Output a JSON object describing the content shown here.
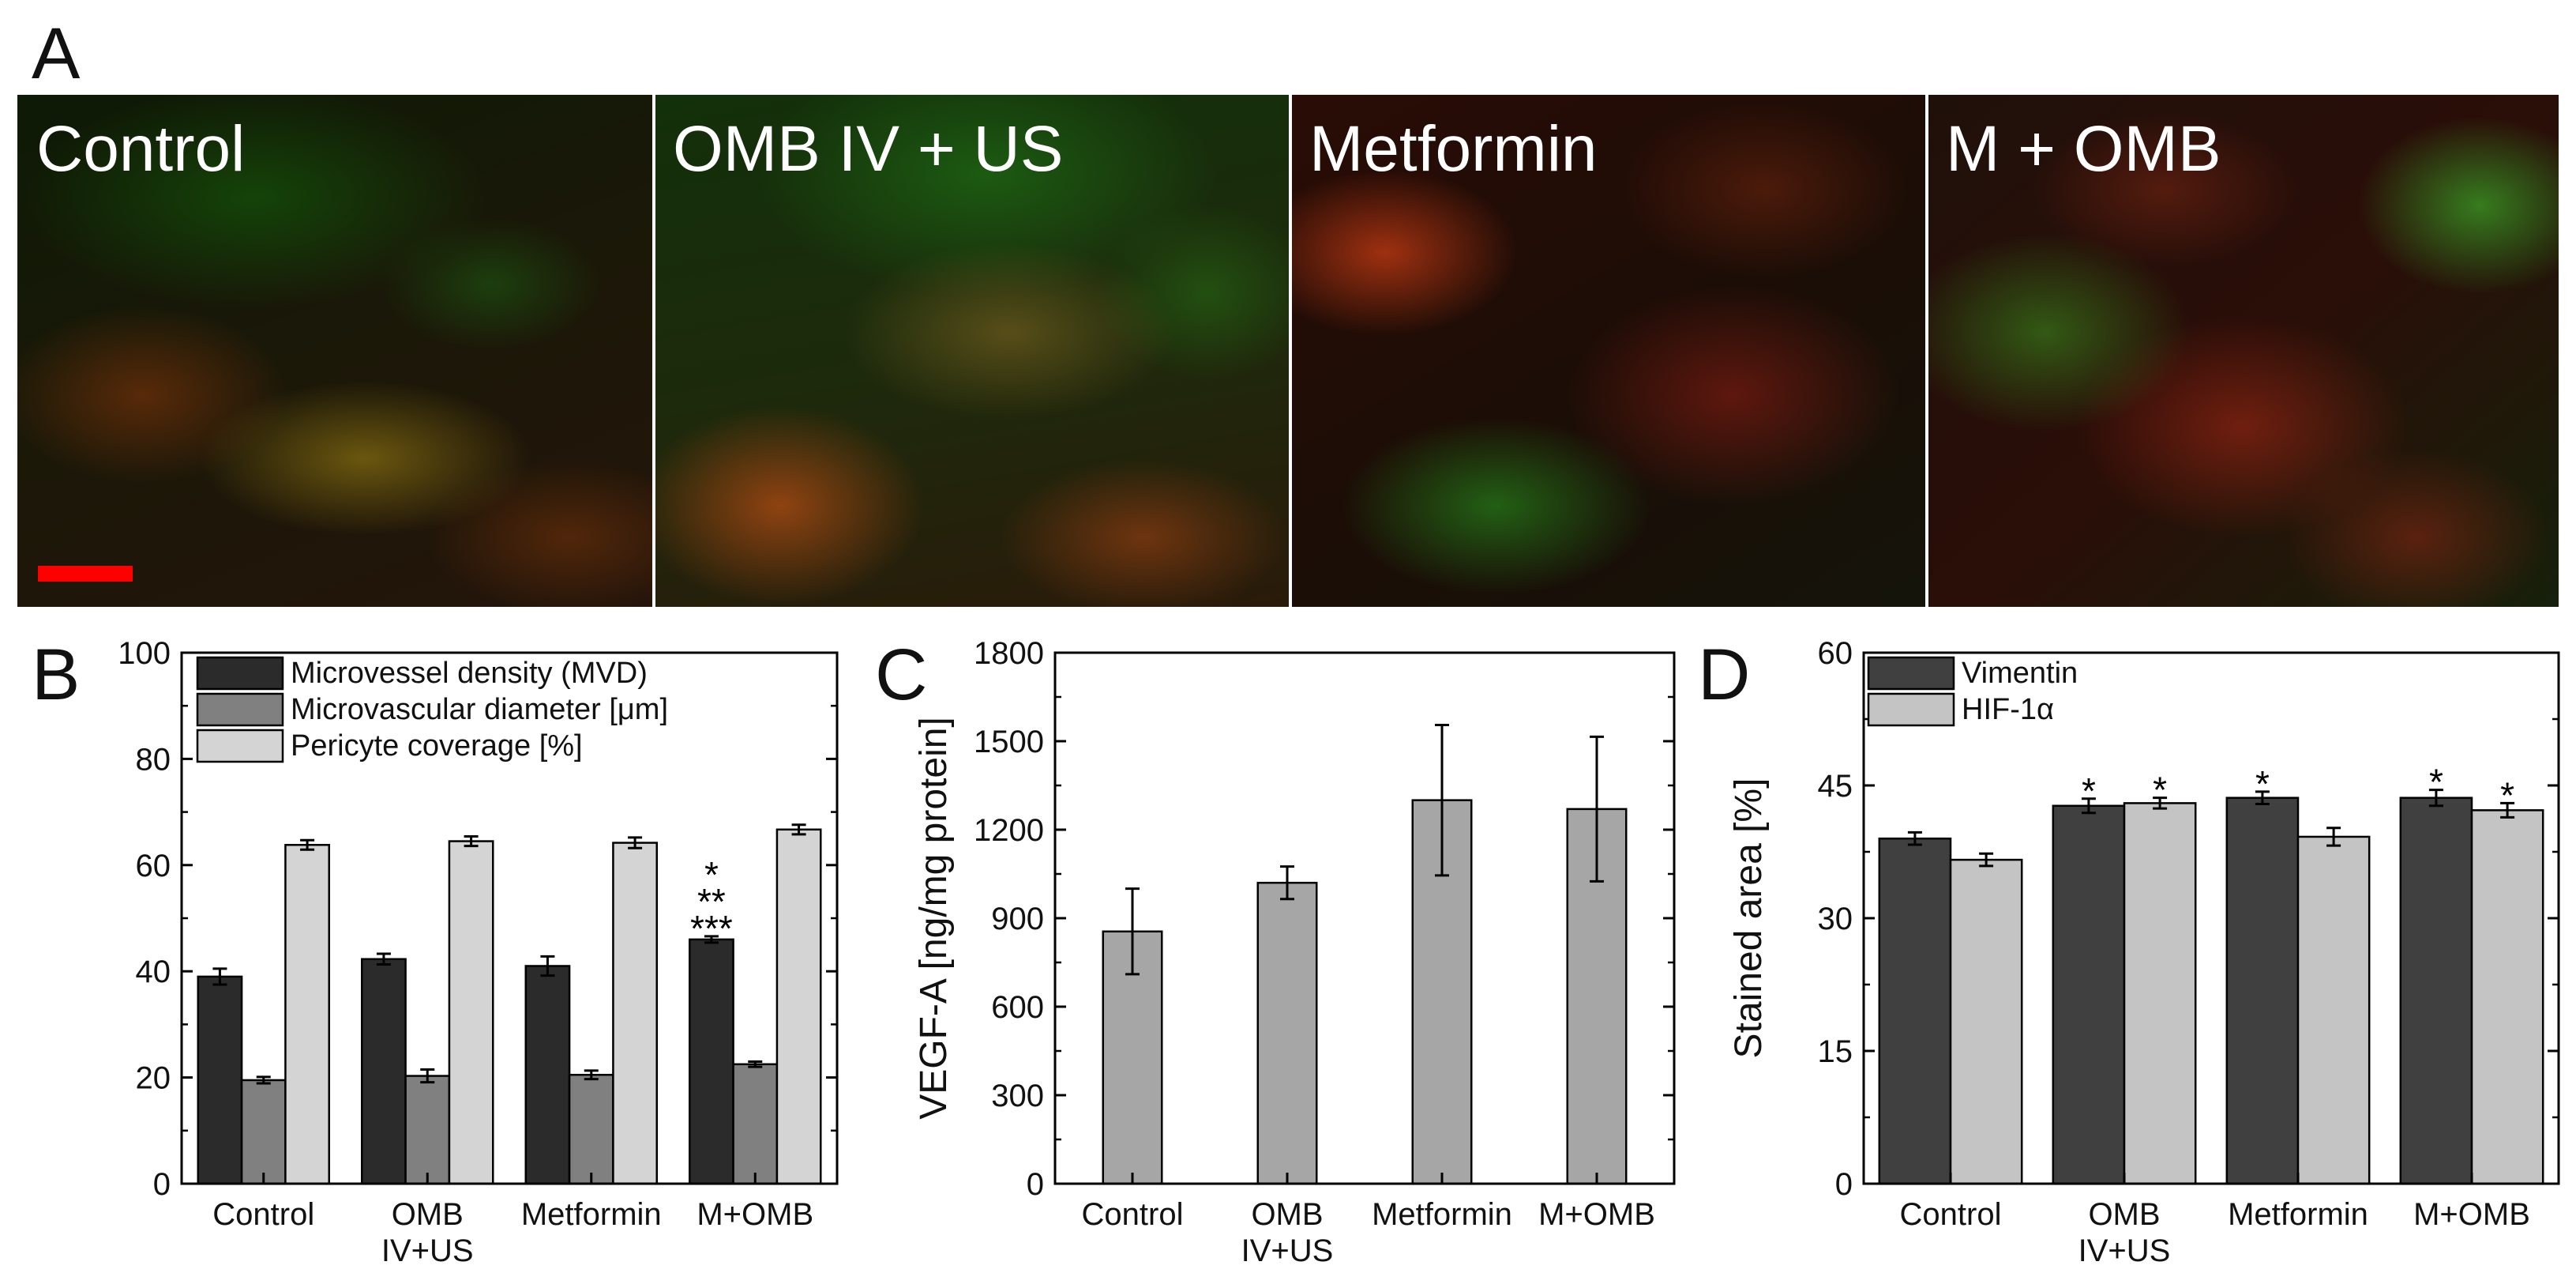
{
  "figure": {
    "panel_letters": {
      "a": "A",
      "b": "B",
      "c": "C",
      "d": "D"
    },
    "micrographs": [
      {
        "label": "Control",
        "palette": "dark-mixed"
      },
      {
        "label": "OMB IV + US",
        "palette": "green-orange"
      },
      {
        "label": "Metformin",
        "palette": "red-green"
      },
      {
        "label": "M + OMB",
        "palette": "red-green-dense"
      }
    ],
    "scale_bar_color": "#ff0000"
  },
  "chart_data": [
    {
      "type": "bar",
      "panel": "B",
      "categories": [
        "Control",
        "OMB\nIV+US",
        "Metformin",
        "M+OMB"
      ],
      "ylim": [
        0,
        100
      ],
      "yticks": [
        0,
        20,
        40,
        60,
        80,
        100
      ],
      "xlabel": "",
      "ylabel": "",
      "legend_position": "top-left",
      "series": [
        {
          "name": "Microvessel density (MVD)",
          "color": "#2b2b2b",
          "values": [
            39,
            42.3,
            41,
            46
          ],
          "errors": [
            1.5,
            1.0,
            1.8,
            0.6
          ]
        },
        {
          "name": "Microvascular diameter [μm]",
          "color": "#808080",
          "values": [
            19.5,
            20.3,
            20.5,
            22.5
          ],
          "errors": [
            0.6,
            1.2,
            0.8,
            0.5
          ]
        },
        {
          "name": "Pericyte coverage [%]",
          "color": "#d4d4d4",
          "values": [
            63.8,
            64.5,
            64.2,
            66.7
          ],
          "errors": [
            0.9,
            0.9,
            1.0,
            0.9
          ]
        }
      ],
      "annotations": [
        {
          "category_index": 3,
          "series_index": 0,
          "lines": [
            "*",
            "**",
            "***"
          ]
        }
      ]
    },
    {
      "type": "bar",
      "panel": "C",
      "categories": [
        "Control",
        "OMB\nIV+US",
        "Metformin",
        "M+OMB"
      ],
      "ylim": [
        0,
        1800
      ],
      "yticks": [
        0,
        300,
        600,
        900,
        1200,
        1500,
        1800
      ],
      "xlabel": "",
      "ylabel": "VEGF-A [ng/mg protein]",
      "series": [
        {
          "name": "",
          "color": "#a6a6a6",
          "values": [
            855,
            1020,
            1300,
            1270
          ],
          "errors": [
            145,
            55,
            255,
            245
          ]
        }
      ]
    },
    {
      "type": "bar",
      "panel": "D",
      "categories": [
        "Control",
        "OMB\nIV+US",
        "Metformin",
        "M+OMB"
      ],
      "ylim": [
        0,
        60
      ],
      "yticks": [
        0,
        15,
        30,
        45,
        60
      ],
      "xlabel": "",
      "ylabel": "Stained area [%]",
      "legend_position": "top-left",
      "series": [
        {
          "name": "Vimentin",
          "color": "#404040",
          "values": [
            39,
            42.7,
            43.6,
            43.6
          ],
          "errors": [
            0.7,
            0.8,
            0.7,
            0.9
          ]
        },
        {
          "name": "HIF-1α",
          "color": "#c4c4c4",
          "values": [
            36.6,
            43,
            39.2,
            42.2
          ],
          "errors": [
            0.7,
            0.6,
            1.0,
            0.8
          ]
        }
      ],
      "annotations": [
        {
          "category_index": 1,
          "series_index": 0,
          "lines": [
            "*"
          ]
        },
        {
          "category_index": 1,
          "series_index": 1,
          "lines": [
            "*"
          ]
        },
        {
          "category_index": 2,
          "series_index": 0,
          "lines": [
            "*"
          ]
        },
        {
          "category_index": 3,
          "series_index": 0,
          "lines": [
            "*"
          ]
        },
        {
          "category_index": 3,
          "series_index": 1,
          "lines": [
            "*"
          ]
        }
      ]
    }
  ]
}
